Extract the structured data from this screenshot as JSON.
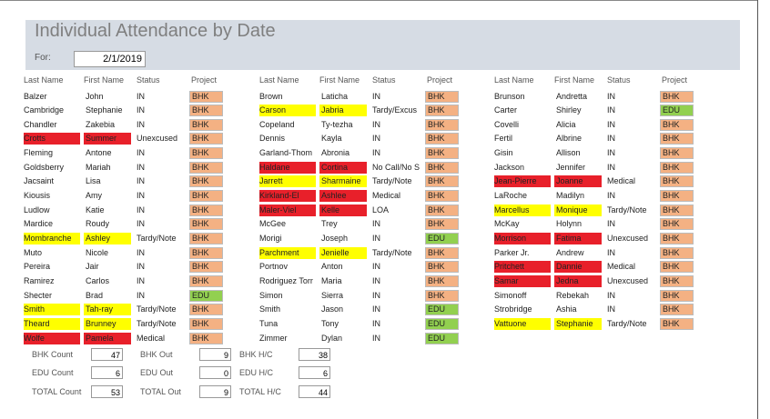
{
  "header": {
    "title": "Individual Attendance by Date",
    "for_label": "For:",
    "date": "2/1/2019"
  },
  "columns": [
    "Last Name",
    "First Name",
    "Status",
    "Project"
  ],
  "project_colors": {
    "BHK": "#f4b183",
    "EDU": "#92d050"
  },
  "groups": [
    [
      {
        "last": "Balzer",
        "first": "John",
        "status": "IN",
        "project": "BHK"
      },
      {
        "last": "Cambridge",
        "first": "Stephanie",
        "status": "IN",
        "project": "BHK"
      },
      {
        "last": "Chandler",
        "first": "Zakebia",
        "status": "IN",
        "project": "BHK"
      },
      {
        "last": "Crotts",
        "first": "Summer",
        "status": "Unexcused",
        "project": "BHK",
        "highlight": "#e8202a"
      },
      {
        "last": "Fleming",
        "first": "Antone",
        "status": "IN",
        "project": "BHK"
      },
      {
        "last": "Goldsberry",
        "first": "Mariah",
        "status": "IN",
        "project": "BHK"
      },
      {
        "last": "Jacsaint",
        "first": "Lisa",
        "status": "IN",
        "project": "BHK"
      },
      {
        "last": "Kiousis",
        "first": "Amy",
        "status": "IN",
        "project": "BHK"
      },
      {
        "last": "Ludlow",
        "first": "Katie",
        "status": "IN",
        "project": "BHK"
      },
      {
        "last": "Mardice",
        "first": "Roudy",
        "status": "IN",
        "project": "BHK"
      },
      {
        "last": "Mombranche",
        "first": "Ashley",
        "status": "Tardy/Note",
        "project": "BHK",
        "highlight": "#ffff00"
      },
      {
        "last": "Muto",
        "first": "Nicole",
        "status": "IN",
        "project": "BHK"
      },
      {
        "last": "Pereira",
        "first": "Jair",
        "status": "IN",
        "project": "BHK"
      },
      {
        "last": "Ramirez",
        "first": "Carlos",
        "status": "IN",
        "project": "BHK"
      },
      {
        "last": "Shecter",
        "first": "Brad",
        "status": "IN",
        "project": "EDU"
      },
      {
        "last": "Smith",
        "first": "Tah-ray",
        "status": "Tardy/Note",
        "project": "BHK",
        "highlight": "#ffff00"
      },
      {
        "last": "Theard",
        "first": "Brunney",
        "status": "Tardy/Note",
        "project": "BHK",
        "highlight": "#ffff00"
      },
      {
        "last": "Wolfe",
        "first": "Pamela",
        "status": "Medical",
        "project": "BHK",
        "highlight": "#e8202a"
      }
    ],
    [
      {
        "last": "Brown",
        "first": "Laticha",
        "status": "IN",
        "project": "BHK"
      },
      {
        "last": "Carson",
        "first": "Jabria",
        "status": "Tardy/Excus",
        "project": "BHK",
        "highlight": "#ffff00"
      },
      {
        "last": "Copeland",
        "first": "Ty-tezha",
        "status": "IN",
        "project": "BHK"
      },
      {
        "last": "Dennis",
        "first": "Kayla",
        "status": "IN",
        "project": "BHK"
      },
      {
        "last": "Garland-Thom",
        "first": "Abronia",
        "status": "IN",
        "project": "BHK"
      },
      {
        "last": "Haldane",
        "first": "Cortina",
        "status": "No Call/No S",
        "project": "BHK",
        "highlight": "#e8202a"
      },
      {
        "last": "Jarrett",
        "first": "Sharmaine",
        "status": "Tardy/Note",
        "project": "BHK",
        "highlight": "#ffff00"
      },
      {
        "last": "Kirkland-El",
        "first": "Ashlee",
        "status": "Medical",
        "project": "BHK",
        "highlight": "#e8202a"
      },
      {
        "last": "Maler-Viel",
        "first": "Kelle",
        "status": "LOA",
        "project": "BHK",
        "highlight": "#e8202a"
      },
      {
        "last": "McGee",
        "first": "Trey",
        "status": "IN",
        "project": "BHK"
      },
      {
        "last": "Morigi",
        "first": "Joseph",
        "status": "IN",
        "project": "EDU"
      },
      {
        "last": "Parchment",
        "first": "Jenielle",
        "status": "Tardy/Note",
        "project": "BHK",
        "highlight": "#ffff00"
      },
      {
        "last": "Portnov",
        "first": "Anton",
        "status": "IN",
        "project": "BHK"
      },
      {
        "last": "Rodriguez Torr",
        "first": "Maria",
        "status": "IN",
        "project": "BHK"
      },
      {
        "last": "Simon",
        "first": "Sierra",
        "status": "IN",
        "project": "BHK"
      },
      {
        "last": "Smith",
        "first": "Jason",
        "status": "IN",
        "project": "EDU"
      },
      {
        "last": "Tuna",
        "first": "Tony",
        "status": "IN",
        "project": "EDU"
      },
      {
        "last": "Zimmer",
        "first": "Dylan",
        "status": "IN",
        "project": "EDU"
      }
    ],
    [
      {
        "last": "Brunson",
        "first": "Andretta",
        "status": "IN",
        "project": "BHK"
      },
      {
        "last": "Carter",
        "first": "Shirley",
        "status": "IN",
        "project": "EDU"
      },
      {
        "last": "Covelli",
        "first": "Alicia",
        "status": "IN",
        "project": "BHK"
      },
      {
        "last": "Fertil",
        "first": "Albrine",
        "status": "IN",
        "project": "BHK"
      },
      {
        "last": "Gisin",
        "first": "Allison",
        "status": "IN",
        "project": "BHK"
      },
      {
        "last": "Jackson",
        "first": "Jennifer",
        "status": "IN",
        "project": "BHK"
      },
      {
        "last": "Jean-Pierre",
        "first": "Joanne",
        "status": "Medical",
        "project": "BHK",
        "highlight": "#e8202a"
      },
      {
        "last": "LaRoche",
        "first": "Madilyn",
        "status": "IN",
        "project": "BHK"
      },
      {
        "last": "Marcellus",
        "first": "Monique",
        "status": "Tardy/Note",
        "project": "BHK",
        "highlight": "#ffff00"
      },
      {
        "last": "McKay",
        "first": "Holynn",
        "status": "IN",
        "project": "BHK"
      },
      {
        "last": "Morrison",
        "first": "Fatima",
        "status": "Unexcused",
        "project": "BHK",
        "highlight": "#e8202a"
      },
      {
        "last": "Parker Jr.",
        "first": "Andrew",
        "status": "IN",
        "project": "BHK"
      },
      {
        "last": "Pritchett",
        "first": "Dannie",
        "status": "Medical",
        "project": "BHK",
        "highlight": "#e8202a"
      },
      {
        "last": "Samar",
        "first": "Jedna",
        "status": "Unexcused",
        "project": "BHK",
        "highlight": "#e8202a"
      },
      {
        "last": "Simonoff",
        "first": "Rebekah",
        "status": "IN",
        "project": "BHK"
      },
      {
        "last": "Strobridge",
        "first": "Ashia",
        "status": "IN",
        "project": "BHK"
      },
      {
        "last": "Vattuone",
        "first": "Stephanie",
        "status": "Tardy/Note",
        "project": "BHK",
        "highlight": "#ffff00"
      }
    ]
  ],
  "totals": [
    [
      {
        "label": "BHK Count",
        "value": "47"
      },
      {
        "label": "EDU Count",
        "value": "6"
      },
      {
        "label": "TOTAL Count",
        "value": "53"
      }
    ],
    [
      {
        "label": "BHK Out",
        "value": "9"
      },
      {
        "label": "EDU Out",
        "value": "0"
      },
      {
        "label": "TOTAL Out",
        "value": "9"
      }
    ],
    [
      {
        "label": "BHK H/C",
        "value": "38"
      },
      {
        "label": "EDU H/C",
        "value": "6"
      },
      {
        "label": "TOTAL H/C",
        "value": "44"
      }
    ]
  ]
}
